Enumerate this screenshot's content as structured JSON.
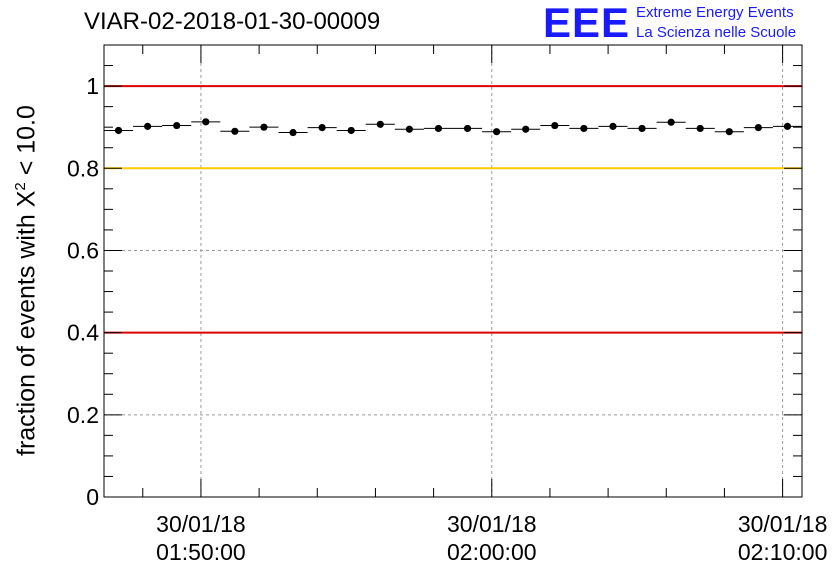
{
  "title": "VIAR-02-2018-01-30-00009",
  "logo": {
    "letters": "EEE",
    "line1": "Extreme Energy Events",
    "line2": "La Scienza nelle Scuole"
  },
  "colors": {
    "red_line": "#dd0000",
    "yellow_line": "#ffcc00",
    "grid": "#9a9a9a",
    "logo": "#1a1aff",
    "points": "#000000"
  },
  "chart_data": {
    "type": "scatter",
    "title": "VIAR-02-2018-01-30-00009",
    "xlabel": "",
    "ylabel": {
      "prefix": "fraction of events with X",
      "superscript": "2",
      "suffix": " < 10.0"
    },
    "ylim": [
      0,
      1.1
    ],
    "xlim": [
      "01:46:40",
      "02:10:40"
    ],
    "xlim_minutes": [
      0,
      24
    ],
    "grid": true,
    "y_ticks": [
      "0",
      "0.2",
      "0.4",
      "0.6",
      "0.8",
      "1"
    ],
    "y_tick_values": [
      0,
      0.2,
      0.4,
      0.6,
      0.8,
      1.0
    ],
    "x_ticks": [
      {
        "date": "30/01/18",
        "time": "01:50:00",
        "minute": 3.333
      },
      {
        "date": "30/01/18",
        "time": "02:00:00",
        "minute": 13.333
      },
      {
        "date": "30/01/18",
        "time": "02:10:00",
        "minute": 23.333
      }
    ],
    "reference_lines": [
      {
        "y": 1.0,
        "color": "red"
      },
      {
        "y": 0.8,
        "color": "yellow"
      },
      {
        "y": 0.4,
        "color": "red"
      }
    ],
    "bin_width_minutes": 1,
    "series": [
      {
        "name": "fraction",
        "x": [
          0.5,
          1.5,
          2.5,
          3.5,
          4.5,
          5.5,
          6.5,
          7.5,
          8.5,
          9.5,
          10.5,
          11.5,
          12.5,
          13.5,
          14.5,
          15.5,
          16.5,
          17.5,
          18.5,
          19.5,
          20.5,
          21.5,
          22.5,
          23.5
        ],
        "y": [
          0.892,
          0.902,
          0.904,
          0.913,
          0.89,
          0.9,
          0.887,
          0.899,
          0.892,
          0.907,
          0.895,
          0.897,
          0.897,
          0.889,
          0.895,
          0.904,
          0.897,
          0.902,
          0.897,
          0.912,
          0.897,
          0.889,
          0.899,
          0.902
        ]
      }
    ]
  }
}
